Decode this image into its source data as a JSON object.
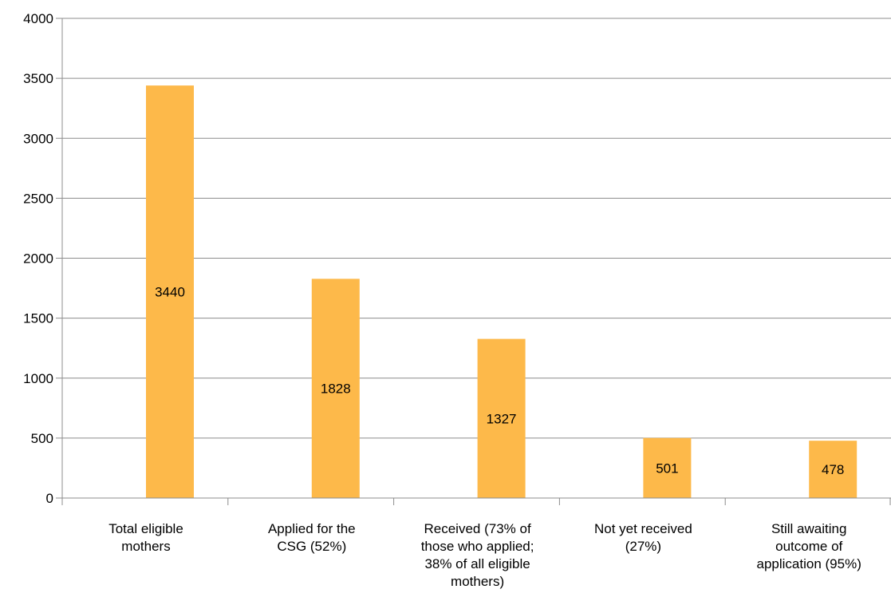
{
  "chart_data": {
    "type": "bar",
    "categories": [
      [
        "Total eligible",
        "mothers"
      ],
      [
        "Applied for the",
        "CSG (52%)"
      ],
      [
        "Received (73% of",
        "those who applied;",
        "38% of all eligible",
        "mothers)"
      ],
      [
        "Not yet received",
        "(27%)"
      ],
      [
        "Still awaiting",
        "outcome of",
        "application (95%)"
      ]
    ],
    "values": [
      3440,
      1828,
      1327,
      501,
      478
    ],
    "data_labels": [
      "3440",
      "1828",
      "1327",
      "501",
      "478"
    ],
    "ylim": [
      0,
      4000
    ],
    "yticks": [
      0,
      500,
      1000,
      1500,
      2000,
      2500,
      3000,
      3500,
      4000
    ],
    "ytick_labels": [
      "0",
      "500",
      "1000",
      "1500",
      "2000",
      "2500",
      "3000",
      "3500",
      "4000"
    ],
    "grid": true,
    "legend": "none",
    "title": "",
    "xlabel": "",
    "ylabel": "",
    "colors": {
      "bar": "#FDB94A",
      "grid": "#8c8c8c",
      "axis": "#8c8c8c",
      "text": "#000000"
    }
  }
}
